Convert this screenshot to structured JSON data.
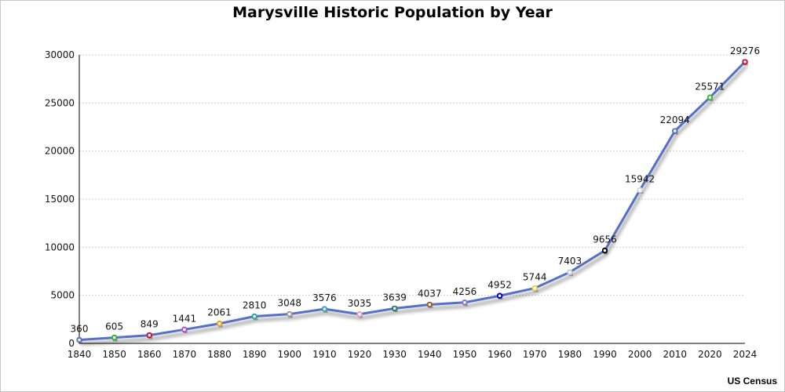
{
  "chart_data": {
    "type": "line",
    "title": "Marysville Historic Population by Year",
    "source": "US Census",
    "xlabel": "",
    "ylabel": "",
    "categories": [
      "1840",
      "1850",
      "1860",
      "1870",
      "1880",
      "1890",
      "1900",
      "1910",
      "1920",
      "1930",
      "1940",
      "1950",
      "1960",
      "1970",
      "1980",
      "1990",
      "2000",
      "2010",
      "2020",
      "2024"
    ],
    "series": [
      {
        "name": "Population",
        "color": "#5470c6",
        "values": [
          360,
          605,
          849,
          1441,
          2061,
          2810,
          3048,
          3576,
          3035,
          3639,
          4037,
          4256,
          4952,
          5744,
          7403,
          9656,
          15942,
          22094,
          25571,
          29276
        ],
        "marker_colors": [
          "#5470c6",
          "#22b922",
          "#c8102e",
          "#b44fc9",
          "#f39c12",
          "#20a8a0",
          "#999999",
          "#3a9fb0",
          "#e8a0b4",
          "#1f7a6a",
          "#a0522d",
          "#8a6fd8",
          "#0000cc",
          "#e0d640",
          "#c8c8d8",
          "#000000",
          "#d8d8d8",
          "#5470c6",
          "#33bb33",
          "#c8102e"
        ]
      }
    ],
    "ylim": [
      0,
      30000
    ],
    "yticks": [
      0,
      5000,
      10000,
      15000,
      20000,
      25000,
      30000
    ],
    "grid": true,
    "data_labels": true,
    "legend": "none"
  }
}
